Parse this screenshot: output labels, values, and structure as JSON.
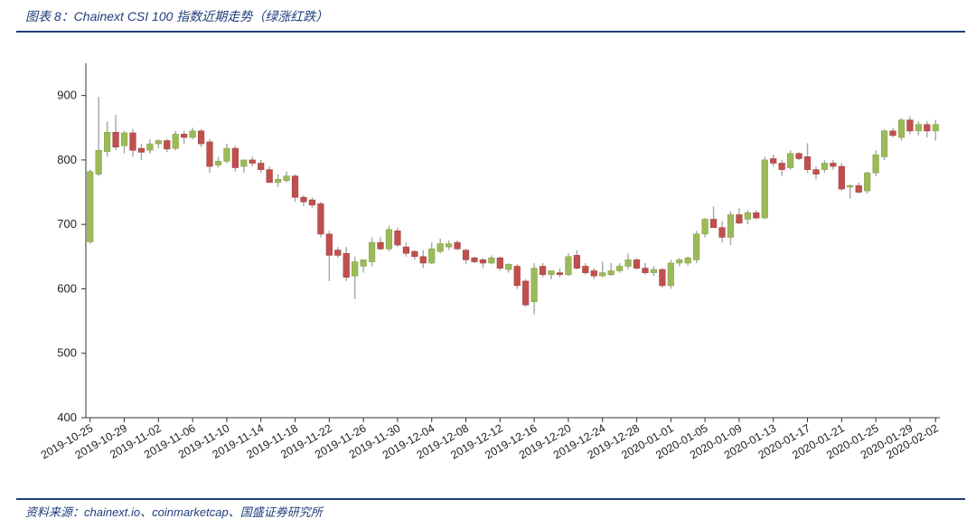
{
  "figure": {
    "title": "图表 8：Chainext CSI 100 指数近期走势（绿涨红跌）",
    "source": "资料来源：chainext.io、coinmarketcap、国盛证券研究所"
  },
  "colors": {
    "up": "#9bbb59",
    "down": "#c0504d",
    "wick": "#a6a6a6",
    "axis": "#333333",
    "rule": "#1f3d7a"
  },
  "chart_data": {
    "type": "candlestick",
    "title": "Chainext CSI 100 指数近期走势（绿涨红跌）",
    "legend_note": "绿涨红跌",
    "xlabel": "",
    "ylabel": "",
    "ylim": [
      400,
      950
    ],
    "yticks": [
      400,
      500,
      600,
      700,
      800,
      900
    ],
    "x_tick_labels": [
      "2019-10-25",
      "2019-10-29",
      "2019-11-02",
      "2019-11-06",
      "2019-11-10",
      "2019-11-14",
      "2019-11-18",
      "2019-11-22",
      "2019-11-26",
      "2019-11-30",
      "2019-12-04",
      "2019-12-08",
      "2019-12-12",
      "2019-12-16",
      "2019-12-20",
      "2019-12-24",
      "2019-12-28",
      "2020-01-01",
      "2020-01-05",
      "2020-01-09",
      "2020-01-13",
      "2020-01-17",
      "2020-01-21",
      "2020-01-25",
      "2020-01-29",
      "2020-02-02"
    ],
    "grid": false,
    "ohlc": [
      {
        "date": "2019-10-25",
        "o": 673,
        "h": 785,
        "l": 670,
        "c": 782
      },
      {
        "date": "2019-10-26",
        "o": 778,
        "h": 898,
        "l": 775,
        "c": 815
      },
      {
        "date": "2019-10-27",
        "o": 813,
        "h": 860,
        "l": 805,
        "c": 843
      },
      {
        "date": "2019-10-28",
        "o": 843,
        "h": 870,
        "l": 815,
        "c": 820
      },
      {
        "date": "2019-10-29",
        "o": 822,
        "h": 845,
        "l": 810,
        "c": 842
      },
      {
        "date": "2019-10-30",
        "o": 842,
        "h": 848,
        "l": 805,
        "c": 815
      },
      {
        "date": "2019-10-31",
        "o": 818,
        "h": 825,
        "l": 800,
        "c": 812
      },
      {
        "date": "2019-11-01",
        "o": 815,
        "h": 832,
        "l": 810,
        "c": 825
      },
      {
        "date": "2019-11-02",
        "o": 825,
        "h": 832,
        "l": 818,
        "c": 830
      },
      {
        "date": "2019-11-03",
        "o": 830,
        "h": 832,
        "l": 812,
        "c": 817
      },
      {
        "date": "2019-11-04",
        "o": 818,
        "h": 845,
        "l": 815,
        "c": 840
      },
      {
        "date": "2019-11-05",
        "o": 840,
        "h": 845,
        "l": 825,
        "c": 835
      },
      {
        "date": "2019-11-06",
        "o": 835,
        "h": 850,
        "l": 832,
        "c": 845
      },
      {
        "date": "2019-11-07",
        "o": 845,
        "h": 848,
        "l": 820,
        "c": 825
      },
      {
        "date": "2019-11-08",
        "o": 828,
        "h": 832,
        "l": 780,
        "c": 790
      },
      {
        "date": "2019-11-09",
        "o": 792,
        "h": 805,
        "l": 788,
        "c": 798
      },
      {
        "date": "2019-11-10",
        "o": 798,
        "h": 825,
        "l": 795,
        "c": 818
      },
      {
        "date": "2019-11-11",
        "o": 818,
        "h": 822,
        "l": 782,
        "c": 788
      },
      {
        "date": "2019-11-12",
        "o": 790,
        "h": 800,
        "l": 780,
        "c": 800
      },
      {
        "date": "2019-11-13",
        "o": 800,
        "h": 805,
        "l": 790,
        "c": 795
      },
      {
        "date": "2019-11-14",
        "o": 795,
        "h": 800,
        "l": 780,
        "c": 785
      },
      {
        "date": "2019-11-15",
        "o": 785,
        "h": 790,
        "l": 765,
        "c": 765
      },
      {
        "date": "2019-11-16",
        "o": 765,
        "h": 778,
        "l": 758,
        "c": 770
      },
      {
        "date": "2019-11-17",
        "o": 768,
        "h": 782,
        "l": 765,
        "c": 775
      },
      {
        "date": "2019-11-18",
        "o": 775,
        "h": 778,
        "l": 735,
        "c": 742
      },
      {
        "date": "2019-11-19",
        "o": 742,
        "h": 745,
        "l": 728,
        "c": 735
      },
      {
        "date": "2019-11-20",
        "o": 738,
        "h": 742,
        "l": 725,
        "c": 730
      },
      {
        "date": "2019-11-21",
        "o": 732,
        "h": 735,
        "l": 680,
        "c": 685
      },
      {
        "date": "2019-11-22",
        "o": 685,
        "h": 690,
        "l": 612,
        "c": 652
      },
      {
        "date": "2019-11-23",
        "o": 660,
        "h": 665,
        "l": 648,
        "c": 652
      },
      {
        "date": "2019-11-24",
        "o": 655,
        "h": 665,
        "l": 612,
        "c": 618
      },
      {
        "date": "2019-11-25",
        "o": 620,
        "h": 650,
        "l": 584,
        "c": 642
      },
      {
        "date": "2019-11-26",
        "o": 635,
        "h": 645,
        "l": 625,
        "c": 645
      },
      {
        "date": "2019-11-27",
        "o": 642,
        "h": 680,
        "l": 635,
        "c": 672
      },
      {
        "date": "2019-11-28",
        "o": 672,
        "h": 680,
        "l": 660,
        "c": 662
      },
      {
        "date": "2019-11-29",
        "o": 662,
        "h": 698,
        "l": 658,
        "c": 692
      },
      {
        "date": "2019-11-30",
        "o": 690,
        "h": 695,
        "l": 665,
        "c": 668
      },
      {
        "date": "2019-12-01",
        "o": 665,
        "h": 672,
        "l": 650,
        "c": 655
      },
      {
        "date": "2019-12-02",
        "o": 658,
        "h": 660,
        "l": 645,
        "c": 650
      },
      {
        "date": "2019-12-03",
        "o": 650,
        "h": 660,
        "l": 632,
        "c": 640
      },
      {
        "date": "2019-12-04",
        "o": 640,
        "h": 672,
        "l": 638,
        "c": 662
      },
      {
        "date": "2019-12-05",
        "o": 658,
        "h": 678,
        "l": 655,
        "c": 670
      },
      {
        "date": "2019-12-06",
        "o": 665,
        "h": 675,
        "l": 660,
        "c": 670
      },
      {
        "date": "2019-12-07",
        "o": 672,
        "h": 675,
        "l": 660,
        "c": 662
      },
      {
        "date": "2019-12-08",
        "o": 660,
        "h": 662,
        "l": 638,
        "c": 645
      },
      {
        "date": "2019-12-09",
        "o": 648,
        "h": 650,
        "l": 640,
        "c": 642
      },
      {
        "date": "2019-12-10",
        "o": 645,
        "h": 648,
        "l": 632,
        "c": 640
      },
      {
        "date": "2019-12-11",
        "o": 640,
        "h": 652,
        "l": 638,
        "c": 648
      },
      {
        "date": "2019-12-12",
        "o": 648,
        "h": 650,
        "l": 628,
        "c": 632
      },
      {
        "date": "2019-12-13",
        "o": 630,
        "h": 640,
        "l": 625,
        "c": 638
      },
      {
        "date": "2019-12-14",
        "o": 635,
        "h": 638,
        "l": 600,
        "c": 605
      },
      {
        "date": "2019-12-15",
        "o": 612,
        "h": 615,
        "l": 572,
        "c": 575
      },
      {
        "date": "2019-12-16",
        "o": 580,
        "h": 640,
        "l": 560,
        "c": 632
      },
      {
        "date": "2019-12-17",
        "o": 635,
        "h": 640,
        "l": 618,
        "c": 622
      },
      {
        "date": "2019-12-18",
        "o": 622,
        "h": 628,
        "l": 615,
        "c": 628
      },
      {
        "date": "2019-12-19",
        "o": 625,
        "h": 632,
        "l": 618,
        "c": 622
      },
      {
        "date": "2019-12-20",
        "o": 622,
        "h": 655,
        "l": 620,
        "c": 650
      },
      {
        "date": "2019-12-21",
        "o": 652,
        "h": 660,
        "l": 630,
        "c": 632
      },
      {
        "date": "2019-12-22",
        "o": 635,
        "h": 640,
        "l": 622,
        "c": 625
      },
      {
        "date": "2019-12-23",
        "o": 628,
        "h": 632,
        "l": 615,
        "c": 620
      },
      {
        "date": "2019-12-24",
        "o": 620,
        "h": 642,
        "l": 618,
        "c": 625
      },
      {
        "date": "2019-12-25",
        "o": 622,
        "h": 640,
        "l": 620,
        "c": 628
      },
      {
        "date": "2019-12-26",
        "o": 628,
        "h": 640,
        "l": 625,
        "c": 635
      },
      {
        "date": "2019-12-27",
        "o": 635,
        "h": 655,
        "l": 630,
        "c": 645
      },
      {
        "date": "2019-12-28",
        "o": 645,
        "h": 648,
        "l": 630,
        "c": 632
      },
      {
        "date": "2019-12-29",
        "o": 632,
        "h": 640,
        "l": 622,
        "c": 625
      },
      {
        "date": "2019-12-30",
        "o": 625,
        "h": 635,
        "l": 620,
        "c": 630
      },
      {
        "date": "2019-12-31",
        "o": 630,
        "h": 632,
        "l": 602,
        "c": 605
      },
      {
        "date": "2020-01-01",
        "o": 605,
        "h": 645,
        "l": 600,
        "c": 640
      },
      {
        "date": "2020-01-02",
        "o": 640,
        "h": 648,
        "l": 635,
        "c": 645
      },
      {
        "date": "2020-01-03",
        "o": 640,
        "h": 650,
        "l": 636,
        "c": 648
      },
      {
        "date": "2020-01-04",
        "o": 645,
        "h": 690,
        "l": 640,
        "c": 685
      },
      {
        "date": "2020-01-05",
        "o": 685,
        "h": 710,
        "l": 680,
        "c": 708
      },
      {
        "date": "2020-01-06",
        "o": 708,
        "h": 728,
        "l": 695,
        "c": 695
      },
      {
        "date": "2020-01-07",
        "o": 695,
        "h": 705,
        "l": 672,
        "c": 680
      },
      {
        "date": "2020-01-08",
        "o": 680,
        "h": 720,
        "l": 668,
        "c": 715
      },
      {
        "date": "2020-01-09",
        "o": 715,
        "h": 725,
        "l": 700,
        "c": 702
      },
      {
        "date": "2020-01-10",
        "o": 708,
        "h": 722,
        "l": 700,
        "c": 718
      },
      {
        "date": "2020-01-11",
        "o": 718,
        "h": 722,
        "l": 708,
        "c": 710
      },
      {
        "date": "2020-01-12",
        "o": 710,
        "h": 805,
        "l": 708,
        "c": 800
      },
      {
        "date": "2020-01-13",
        "o": 802,
        "h": 808,
        "l": 790,
        "c": 795
      },
      {
        "date": "2020-01-14",
        "o": 795,
        "h": 800,
        "l": 775,
        "c": 785
      },
      {
        "date": "2020-01-15",
        "o": 788,
        "h": 815,
        "l": 785,
        "c": 810
      },
      {
        "date": "2020-01-16",
        "o": 810,
        "h": 812,
        "l": 800,
        "c": 802
      },
      {
        "date": "2020-01-17",
        "o": 805,
        "h": 826,
        "l": 780,
        "c": 785
      },
      {
        "date": "2020-01-18",
        "o": 785,
        "h": 790,
        "l": 770,
        "c": 778
      },
      {
        "date": "2020-01-19",
        "o": 785,
        "h": 800,
        "l": 780,
        "c": 795
      },
      {
        "date": "2020-01-20",
        "o": 795,
        "h": 800,
        "l": 785,
        "c": 790
      },
      {
        "date": "2020-01-21",
        "o": 790,
        "h": 795,
        "l": 752,
        "c": 755
      },
      {
        "date": "2020-01-22",
        "o": 758,
        "h": 762,
        "l": 740,
        "c": 760
      },
      {
        "date": "2020-01-23",
        "o": 760,
        "h": 765,
        "l": 748,
        "c": 750
      },
      {
        "date": "2020-01-24",
        "o": 752,
        "h": 782,
        "l": 748,
        "c": 780
      },
      {
        "date": "2020-01-25",
        "o": 780,
        "h": 815,
        "l": 775,
        "c": 808
      },
      {
        "date": "2020-01-26",
        "o": 805,
        "h": 848,
        "l": 800,
        "c": 845
      },
      {
        "date": "2020-01-27",
        "o": 845,
        "h": 850,
        "l": 835,
        "c": 838
      },
      {
        "date": "2020-01-28",
        "o": 835,
        "h": 865,
        "l": 830,
        "c": 862
      },
      {
        "date": "2020-01-29",
        "o": 862,
        "h": 868,
        "l": 840,
        "c": 845
      },
      {
        "date": "2020-01-30",
        "o": 845,
        "h": 860,
        "l": 838,
        "c": 855
      },
      {
        "date": "2020-01-31",
        "o": 855,
        "h": 860,
        "l": 835,
        "c": 845
      },
      {
        "date": "2020-02-01",
        "o": 845,
        "h": 862,
        "l": 830,
        "c": 855
      }
    ]
  }
}
